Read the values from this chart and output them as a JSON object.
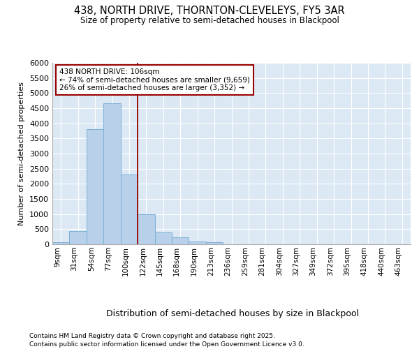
{
  "title1": "438, NORTH DRIVE, THORNTON-CLEVELEYS, FY5 3AR",
  "title2": "Size of property relative to semi-detached houses in Blackpool",
  "xlabel": "Distribution of semi-detached houses by size in Blackpool",
  "ylabel": "Number of semi-detached properties",
  "categories": [
    "9sqm",
    "31sqm",
    "54sqm",
    "77sqm",
    "100sqm",
    "122sqm",
    "145sqm",
    "168sqm",
    "190sqm",
    "213sqm",
    "236sqm",
    "259sqm",
    "281sqm",
    "304sqm",
    "327sqm",
    "349sqm",
    "372sqm",
    "395sqm",
    "418sqm",
    "440sqm",
    "463sqm"
  ],
  "values": [
    75,
    450,
    3800,
    4650,
    2300,
    1000,
    400,
    240,
    100,
    75,
    0,
    0,
    0,
    0,
    0,
    0,
    0,
    0,
    0,
    0,
    0
  ],
  "bar_color": "#b8d0ea",
  "bar_edge_color": "#7aafd4",
  "property_line_x": 4.5,
  "annotation_line1": "438 NORTH DRIVE: 106sqm",
  "annotation_line2": "← 74% of semi-detached houses are smaller (9,659)",
  "annotation_line3": "26% of semi-detached houses are larger (3,352) →",
  "ylim": [
    0,
    6000
  ],
  "yticks": [
    0,
    500,
    1000,
    1500,
    2000,
    2500,
    3000,
    3500,
    4000,
    4500,
    5000,
    5500,
    6000
  ],
  "fig_bg_color": "#ffffff",
  "plot_bg_color": "#dce9f5",
  "grid_color": "#ffffff",
  "footnote1": "Contains HM Land Registry data © Crown copyright and database right 2025.",
  "footnote2": "Contains public sector information licensed under the Open Government Licence v3.0."
}
